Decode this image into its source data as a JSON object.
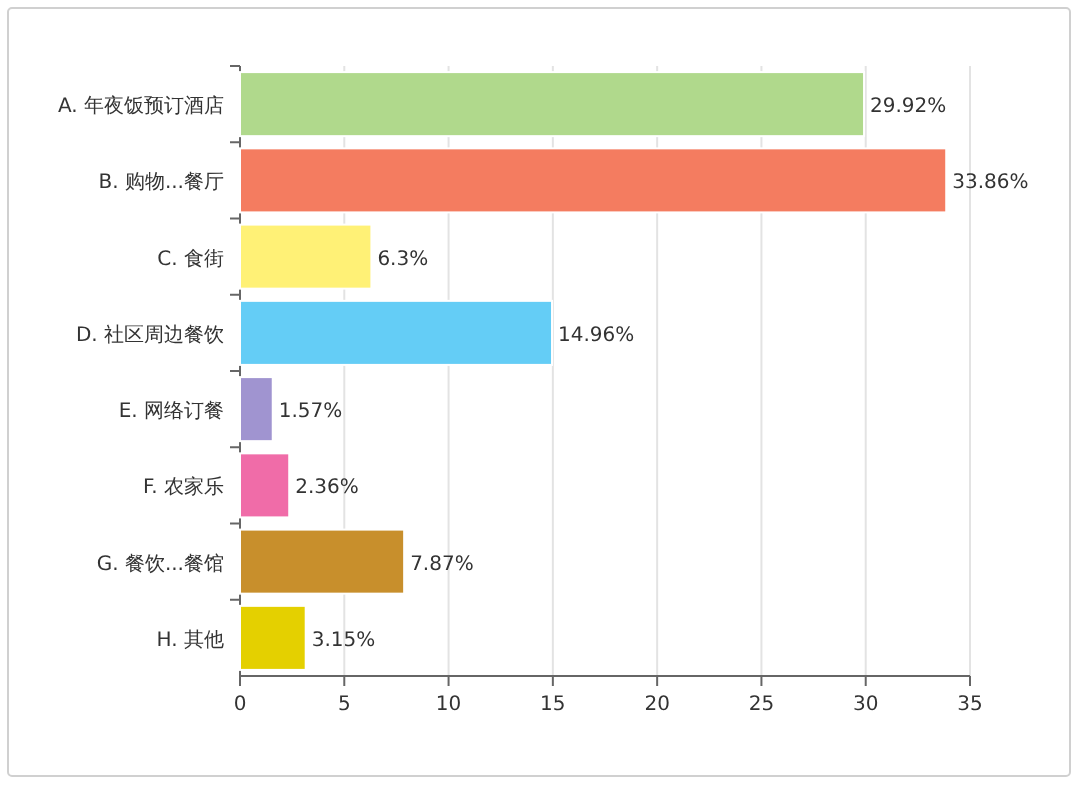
{
  "chart_data": {
    "type": "bar",
    "orientation": "horizontal",
    "categories": [
      "A. 年夜饭预订酒店",
      "B. 购物...餐厅",
      "C. 食街",
      "D. 社区周边餐饮",
      "E. 网络订餐",
      "F. 农家乐",
      "G. 餐饮...餐馆",
      "H. 其他"
    ],
    "values": [
      29.92,
      33.86,
      6.3,
      14.96,
      1.57,
      2.36,
      7.87,
      3.15
    ],
    "value_labels": [
      "29.92%",
      "33.86%",
      "6.3%",
      "14.96%",
      "1.57%",
      "2.36%",
      "7.87%",
      "3.15%"
    ],
    "colors": [
      "#b0d98c",
      "#f47c60",
      "#fff176",
      "#64cdf6",
      "#a094d0",
      "#f06ca8",
      "#c88f2c",
      "#e4d000"
    ],
    "xlim": [
      0,
      35
    ],
    "xticks": [
      0,
      5,
      10,
      15,
      20,
      25,
      30,
      35
    ],
    "grid": "x"
  }
}
